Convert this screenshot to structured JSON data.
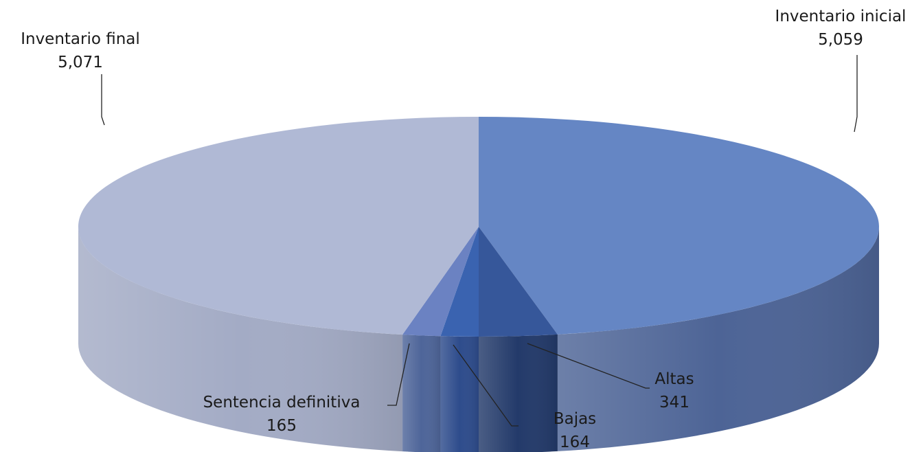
{
  "chart_data": {
    "type": "pie",
    "style": "3d",
    "categories": [
      "Inventario inicial",
      "Altas",
      "Bajas",
      "Sentencia definitiva",
      "Inventario final"
    ],
    "values": [
      5059,
      341,
      164,
      165,
      5071
    ],
    "value_labels": [
      "5,059",
      "341",
      "164",
      "165",
      "5,071"
    ],
    "colors": [
      "#6586c4",
      "#36579a",
      "#3a63b0",
      "#6b82c2",
      "#b0b9d5"
    ],
    "side_colors": [
      "#4d6496",
      "#233a6a",
      "#2e4c8c",
      "#4e6599",
      "#a3abc5"
    ],
    "legend": false
  }
}
